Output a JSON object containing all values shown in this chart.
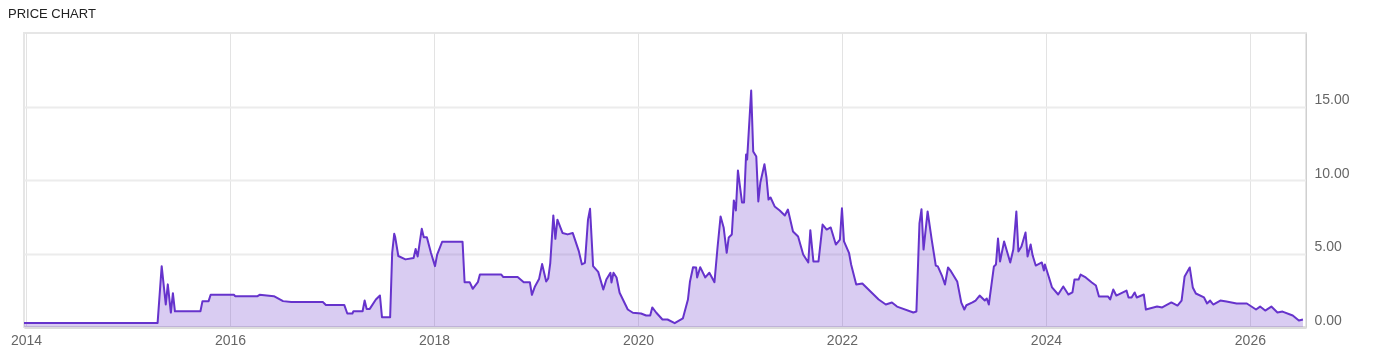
{
  "chart_data": {
    "type": "area",
    "title": "PRICE CHART",
    "xlim": [
      2013.98,
      2026.55
    ],
    "xticks": [
      2014,
      2016,
      2018,
      2020,
      2022,
      2024,
      2026
    ],
    "ylim": [
      0,
      20
    ],
    "yticks": [
      {
        "value": 0,
        "label": "0.00"
      },
      {
        "value": 5,
        "label": "5.00"
      },
      {
        "value": 10,
        "label": "10.00"
      },
      {
        "value": 15,
        "label": "15.00"
      }
    ],
    "grid": true,
    "x": [
      2013.98,
      2015.29,
      2015.33,
      2015.37,
      2015.39,
      2015.42,
      2015.44,
      2015.46,
      2015.71,
      2015.73,
      2015.79,
      2015.81,
      2016.04,
      2016.05,
      2016.27,
      2016.29,
      2016.43,
      2016.52,
      2016.6,
      2016.91,
      2016.94,
      2017.12,
      2017.15,
      2017.2,
      2017.21,
      2017.3,
      2017.32,
      2017.34,
      2017.37,
      2017.43,
      2017.47,
      2017.49,
      2017.57,
      2017.59,
      2017.61,
      2017.62,
      2017.65,
      2017.72,
      2017.8,
      2017.82,
      2017.84,
      2017.88,
      2017.9,
      2017.93,
      2017.97,
      2018.01,
      2018.03,
      2018.08,
      2018.19,
      2018.28,
      2018.3,
      2018.35,
      2018.38,
      2018.43,
      2018.45,
      2018.66,
      2018.68,
      2018.82,
      2018.88,
      2018.94,
      2018.96,
      2018.99,
      2019.03,
      2019.06,
      2019.1,
      2019.12,
      2019.14,
      2019.17,
      2019.19,
      2019.21,
      2019.26,
      2019.31,
      2019.36,
      2019.42,
      2019.45,
      2019.48,
      2019.51,
      2019.53,
      2019.56,
      2019.61,
      2019.66,
      2019.69,
      2019.73,
      2019.74,
      2019.76,
      2019.79,
      2019.82,
      2019.9,
      2019.95,
      2020.03,
      2020.08,
      2020.12,
      2020.14,
      2020.18,
      2020.24,
      2020.29,
      2020.36,
      2020.44,
      2020.49,
      2020.51,
      2020.54,
      2020.57,
      2020.58,
      2020.61,
      2020.66,
      2020.7,
      2020.75,
      2020.78,
      2020.81,
      2020.84,
      2020.87,
      2020.89,
      2020.92,
      2020.94,
      2020.96,
      2020.98,
      2021.02,
      2021.04,
      2021.06,
      2021.07,
      2021.11,
      2021.13,
      2021.16,
      2021.18,
      2021.2,
      2021.24,
      2021.26,
      2021.28,
      2021.3,
      2021.34,
      2021.39,
      2021.44,
      2021.47,
      2021.52,
      2021.57,
      2021.62,
      2021.67,
      2021.69,
      2021.72,
      2021.77,
      2021.81,
      2021.85,
      2021.89,
      2021.94,
      2021.98,
      2022.0,
      2022.02,
      2022.07,
      2022.09,
      2022.14,
      2022.2,
      2022.3,
      2022.36,
      2022.43,
      2022.49,
      2022.54,
      2022.7,
      2022.73,
      2022.76,
      2022.78,
      2022.8,
      2022.84,
      2022.88,
      2022.92,
      2022.94,
      2022.98,
      2023.01,
      2023.04,
      2023.07,
      2023.13,
      2023.17,
      2023.2,
      2023.22,
      2023.28,
      2023.31,
      2023.35,
      2023.4,
      2023.42,
      2023.44,
      2023.49,
      2023.51,
      2023.53,
      2023.55,
      2023.59,
      2023.65,
      2023.68,
      2023.71,
      2023.73,
      2023.76,
      2023.8,
      2023.82,
      2023.85,
      2023.87,
      2023.9,
      2023.96,
      2023.98,
      2023.99,
      2024.03,
      2024.06,
      2024.12,
      2024.17,
      2024.22,
      2024.26,
      2024.28,
      2024.32,
      2024.34,
      2024.39,
      2024.45,
      2024.49,
      2024.52,
      2024.61,
      2024.63,
      2024.66,
      2024.69,
      2024.79,
      2024.81,
      2024.84,
      2024.87,
      2024.89,
      2024.96,
      2024.98,
      2025.09,
      2025.14,
      2025.23,
      2025.29,
      2025.33,
      2025.36,
      2025.41,
      2025.44,
      2025.47,
      2025.55,
      2025.58,
      2025.61,
      2025.64,
      2025.71,
      2025.77,
      2025.87,
      2025.97,
      2026.06,
      2026.1,
      2026.15,
      2026.21,
      2026.27,
      2026.32,
      2026.42,
      2026.48,
      2026.52
    ],
    "series": [
      {
        "color": "#6633cc",
        "values": [
          0.28,
          0.28,
          4.14,
          1.53,
          2.9,
          0.98,
          2.3,
          1.07,
          1.07,
          1.76,
          1.76,
          2.19,
          2.19,
          2.1,
          2.1,
          2.19,
          2.1,
          1.76,
          1.7,
          1.7,
          1.5,
          1.5,
          0.92,
          0.92,
          1.07,
          1.07,
          1.8,
          1.23,
          1.23,
          1.87,
          2.14,
          0.67,
          0.67,
          5.05,
          6.34,
          6.1,
          4.83,
          4.6,
          4.7,
          5.3,
          4.8,
          6.68,
          6.1,
          6.1,
          5.05,
          4.14,
          4.9,
          5.8,
          5.8,
          5.8,
          3.05,
          3.05,
          2.6,
          3.05,
          3.57,
          3.57,
          3.4,
          3.4,
          3.05,
          3.05,
          2.19,
          2.76,
          3.26,
          4.28,
          3.1,
          3.3,
          4.35,
          7.59,
          6.0,
          7.3,
          6.4,
          6.3,
          6.4,
          5.16,
          4.26,
          4.37,
          7.3,
          8.04,
          4.14,
          3.75,
          2.55,
          3.23,
          3.69,
          3.03,
          3.69,
          3.37,
          2.33,
          1.19,
          0.97,
          0.92,
          0.78,
          0.78,
          1.33,
          0.97,
          0.51,
          0.51,
          0.26,
          0.58,
          1.87,
          3.1,
          4.07,
          4.05,
          3.37,
          4.07,
          3.37,
          3.69,
          3.05,
          5.41,
          7.52,
          6.77,
          5.05,
          6.09,
          6.29,
          8.61,
          7.93,
          10.65,
          8.47,
          8.47,
          11.73,
          11.39,
          16.09,
          11.94,
          11.6,
          8.54,
          9.83,
          11.07,
          10.17,
          8.67,
          8.81,
          8.2,
          7.93,
          7.59,
          7.99,
          6.5,
          6.16,
          4.93,
          4.39,
          6.59,
          4.46,
          4.46,
          6.97,
          6.63,
          6.77,
          5.61,
          5.95,
          8.08,
          5.82,
          5.02,
          4.25,
          2.89,
          2.96,
          2.28,
          1.87,
          1.53,
          1.67,
          1.39,
          0.99,
          1.05,
          7.04,
          8.01,
          5.27,
          7.86,
          5.95,
          4.18,
          4.12,
          3.5,
          2.89,
          4.05,
          3.78,
          3.1,
          1.66,
          1.19,
          1.48,
          1.67,
          1.8,
          2.14,
          1.8,
          1.94,
          1.53,
          4.12,
          4.25,
          6.02,
          4.46,
          5.82,
          4.39,
          5.27,
          7.86,
          5.14,
          5.48,
          6.43,
          4.8,
          5.61,
          4.86,
          4.18,
          4.39,
          3.84,
          4.25,
          3.37,
          2.69,
          2.21,
          2.76,
          2.21,
          2.35,
          3.23,
          3.23,
          3.57,
          3.37,
          3.03,
          2.82,
          2.07,
          2.07,
          1.87,
          2.55,
          2.14,
          2.48,
          2.01,
          2.01,
          2.35,
          2.01,
          2.21,
          1.19,
          1.39,
          1.33,
          1.67,
          1.46,
          1.8,
          3.44,
          4.05,
          2.69,
          2.28,
          2.01,
          1.6,
          1.8,
          1.53,
          1.8,
          1.73,
          1.6,
          1.6,
          1.19,
          1.39,
          1.12,
          1.39,
          0.99,
          1.05,
          0.78,
          0.44,
          0.51
        ]
      }
    ]
  }
}
